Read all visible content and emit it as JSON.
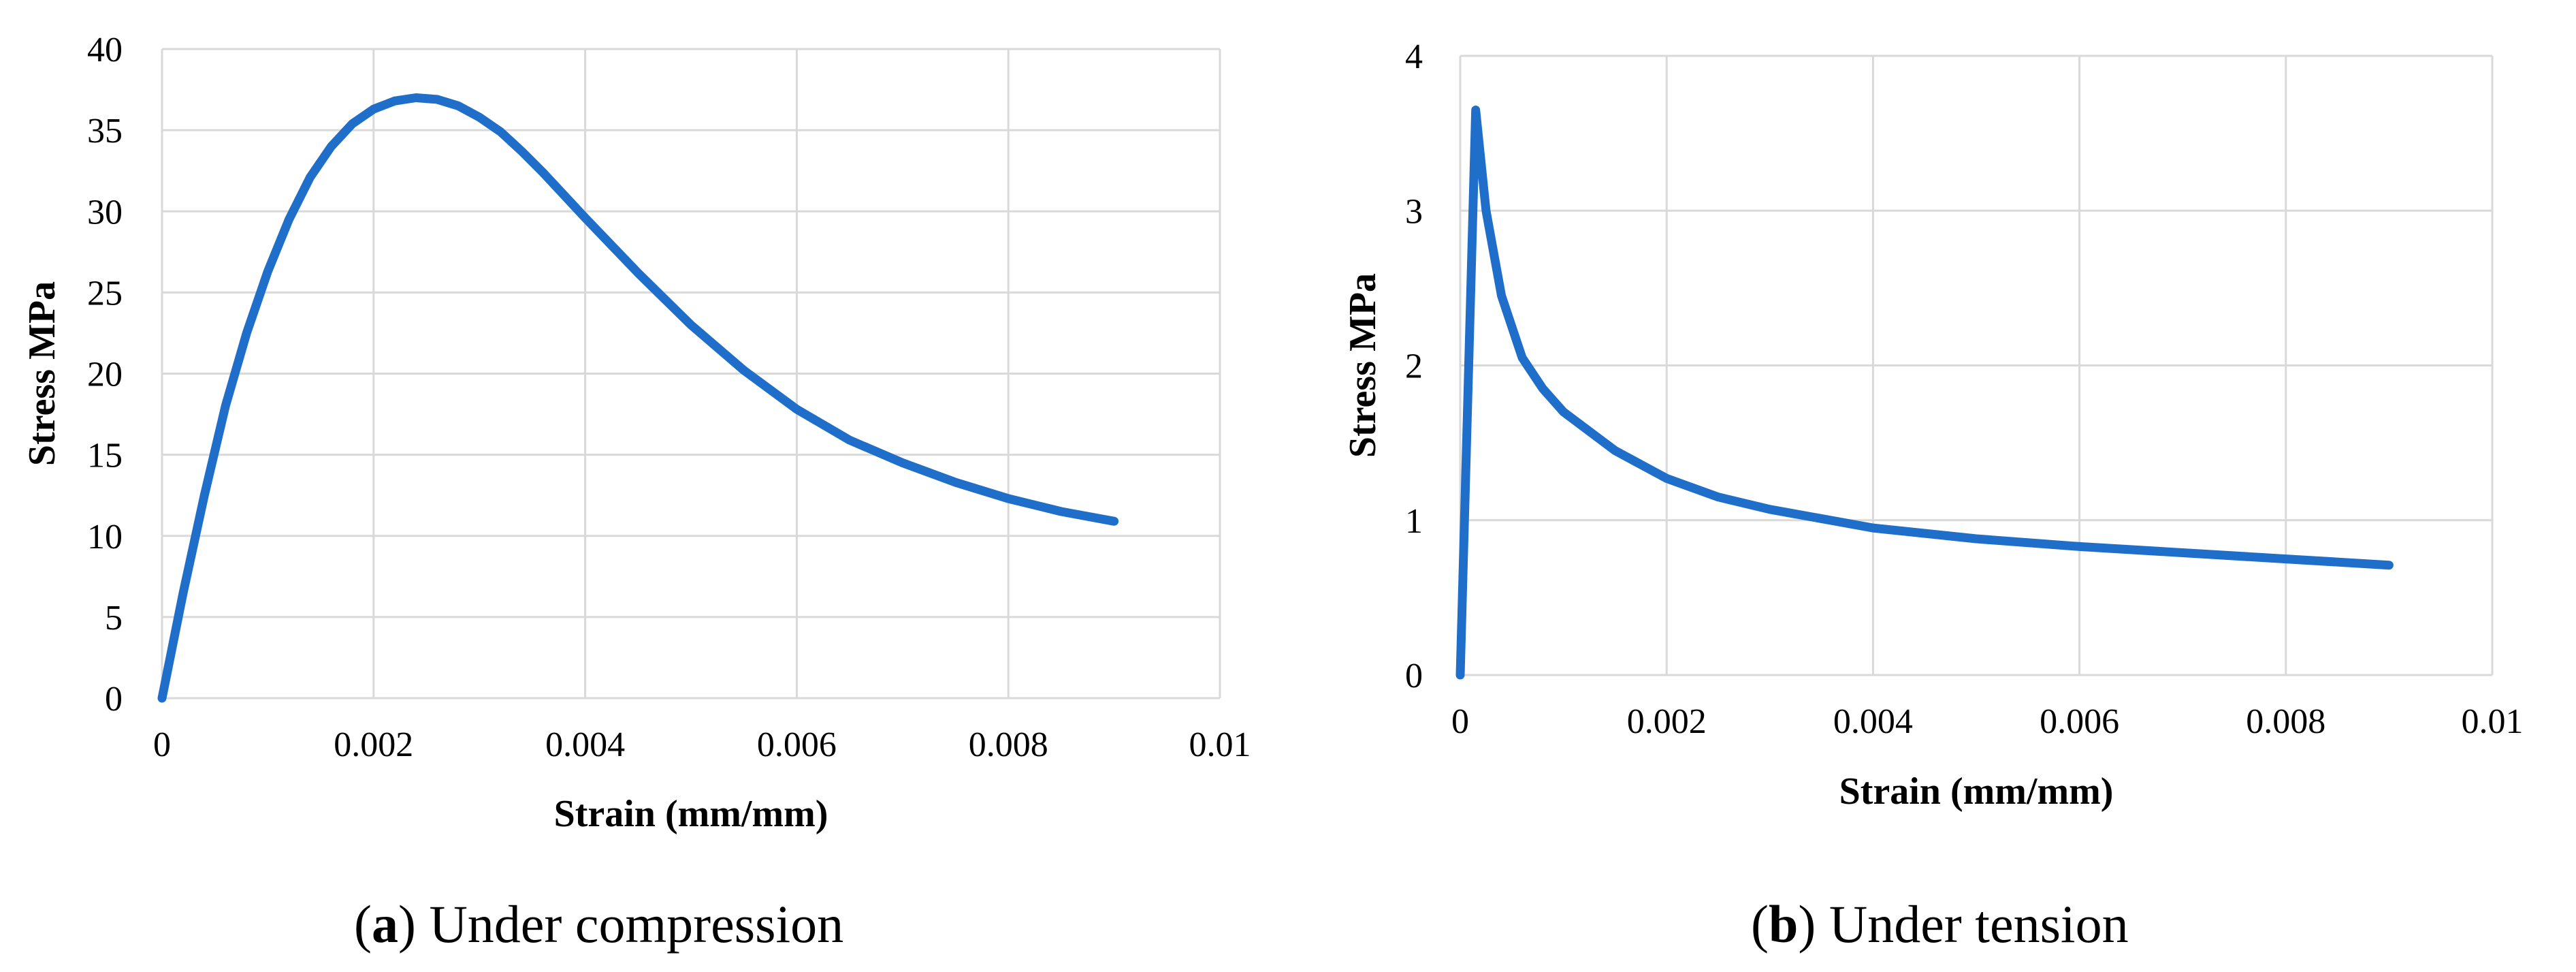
{
  "colors": {
    "series": "#1f6fca",
    "grid": "#d9d9d9",
    "text": "#000000"
  },
  "chart_data": [
    {
      "type": "line",
      "caption_letter": "a",
      "caption_text": "Under compression",
      "title": "",
      "xlabel": "Strain (mm/mm)",
      "ylabel": "Stress MPa",
      "xlim": [
        0,
        0.01
      ],
      "ylim": [
        0,
        40
      ],
      "xticks": [
        0,
        0.002,
        0.004,
        0.006,
        0.008,
        0.01
      ],
      "xtick_labels": [
        "0",
        "0.002",
        "0.004",
        "0.006",
        "0.008",
        "0.01"
      ],
      "yticks": [
        0,
        5,
        10,
        15,
        20,
        25,
        30,
        35,
        40
      ],
      "ytick_labels": [
        "0",
        "5",
        "10",
        "15",
        "20",
        "25",
        "30",
        "35",
        "40"
      ],
      "grid": true,
      "series": [
        {
          "name": "Compression",
          "x": [
            0,
            0.0002,
            0.0004,
            0.0006,
            0.0008,
            0.001,
            0.0012,
            0.0014,
            0.0016,
            0.0018,
            0.002,
            0.0022,
            0.0024,
            0.0026,
            0.0028,
            0.003,
            0.0032,
            0.0034,
            0.0036,
            0.0038,
            0.004,
            0.0045,
            0.005,
            0.0055,
            0.006,
            0.0065,
            0.007,
            0.0075,
            0.008,
            0.0085,
            0.009
          ],
          "y": [
            0,
            6.5,
            12.5,
            18,
            22.5,
            26.3,
            29.5,
            32.1,
            34.0,
            35.4,
            36.3,
            36.8,
            37.0,
            36.9,
            36.5,
            35.8,
            34.9,
            33.7,
            32.4,
            31.0,
            29.6,
            26.2,
            23.0,
            20.2,
            17.8,
            15.9,
            14.5,
            13.3,
            12.3,
            11.5,
            10.9
          ]
        }
      ]
    },
    {
      "type": "line",
      "caption_letter": "b",
      "caption_text": "Under tension",
      "title": "",
      "xlabel": "Strain (mm/mm)",
      "ylabel": "Stress MPa",
      "xlim": [
        0,
        0.01
      ],
      "ylim": [
        0,
        4
      ],
      "xticks": [
        0,
        0.002,
        0.004,
        0.006,
        0.008,
        0.01
      ],
      "xtick_labels": [
        "0",
        "0.002",
        "0.004",
        "0.006",
        "0.008",
        "0.01"
      ],
      "yticks": [
        0,
        1,
        2,
        3,
        4
      ],
      "ytick_labels": [
        "0",
        "1",
        "2",
        "3",
        "4"
      ],
      "grid": true,
      "series": [
        {
          "name": "Tension",
          "x": [
            0,
            0.00015,
            0.00025,
            0.0004,
            0.0006,
            0.0008,
            0.001,
            0.0015,
            0.002,
            0.0025,
            0.003,
            0.004,
            0.005,
            0.006,
            0.007,
            0.008,
            0.009
          ],
          "y": [
            0,
            3.65,
            3.0,
            2.45,
            2.05,
            1.85,
            1.7,
            1.45,
            1.27,
            1.15,
            1.07,
            0.95,
            0.88,
            0.83,
            0.79,
            0.75,
            0.71
          ]
        }
      ]
    }
  ]
}
